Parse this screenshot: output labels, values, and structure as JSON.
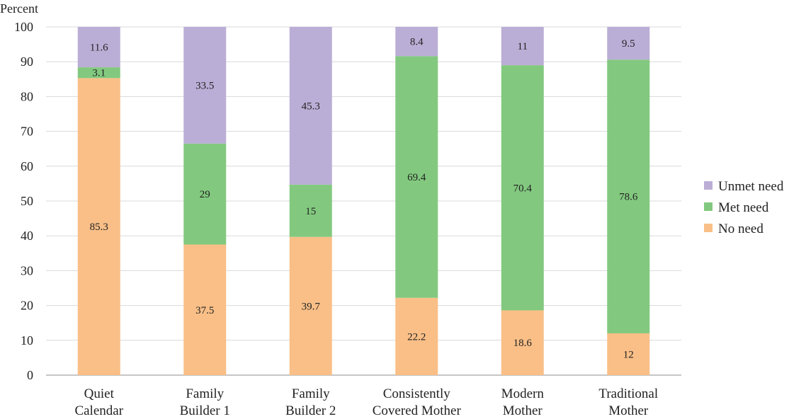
{
  "chart_data": {
    "type": "bar",
    "stacked": true,
    "ylabel": "Percent",
    "ylim": [
      0,
      100
    ],
    "yticks": [
      0,
      10,
      20,
      30,
      40,
      50,
      60,
      70,
      80,
      90,
      100
    ],
    "grid": true,
    "legend_position": "right",
    "categories": [
      [
        "Quiet",
        "Calendar"
      ],
      [
        "Family",
        "Builder 1"
      ],
      [
        "Family",
        "Builder 2"
      ],
      [
        "Consistently",
        "Covered Mother"
      ],
      [
        "Modern",
        "Mother"
      ],
      [
        "Traditional",
        "Mother"
      ]
    ],
    "series": [
      {
        "name": "No need",
        "color": "#f9bf87",
        "values": [
          85.3,
          37.5,
          39.7,
          22.2,
          18.6,
          12
        ]
      },
      {
        "name": "Met need",
        "color": "#82c97f",
        "values": [
          3.1,
          29,
          15,
          69.4,
          70.4,
          78.6
        ]
      },
      {
        "name": "Unmet need",
        "color": "#bbaed6",
        "values": [
          11.6,
          33.5,
          45.3,
          8.4,
          11,
          9.5
        ]
      }
    ]
  }
}
